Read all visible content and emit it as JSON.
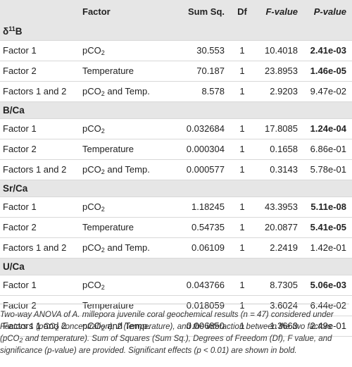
{
  "table": {
    "headers": {
      "factor": "Factor",
      "sum_sq": "Sum Sq.",
      "df": "Df",
      "f_value": "F-value",
      "p_value": "P-value"
    },
    "sections": [
      {
        "title_prefix": "δ",
        "title_sup": "11",
        "title_main": "B",
        "rows": [
          {
            "label": "Factor 1",
            "factor_main": "pCO",
            "factor_sub": "2",
            "factor_tail": "",
            "sum_sq": "30.553",
            "df": "1",
            "f_value": "10.4018",
            "p_value": "2.41e-03",
            "significant": true
          },
          {
            "label": "Factor 2",
            "factor_main": "Temperature",
            "factor_sub": "",
            "factor_tail": "",
            "sum_sq": "70.187",
            "df": "1",
            "f_value": "23.8953",
            "p_value": "1.46e-05",
            "significant": true
          },
          {
            "label": "Factors 1 and 2",
            "factor_main": "pCO",
            "factor_sub": "2",
            "factor_tail": " and Temp.",
            "sum_sq": "8.578",
            "df": "1",
            "f_value": "2.9203",
            "p_value": "9.47e-02",
            "significant": false
          }
        ]
      },
      {
        "title_prefix": "",
        "title_sup": "",
        "title_main": "B/Ca",
        "rows": [
          {
            "label": "Factor 1",
            "factor_main": "pCO",
            "factor_sub": "2",
            "factor_tail": "",
            "sum_sq": "0.032684",
            "df": "1",
            "f_value": "17.8085",
            "p_value": "1.24e-04",
            "significant": true
          },
          {
            "label": "Factor 2",
            "factor_main": "Temperature",
            "factor_sub": "",
            "factor_tail": "",
            "sum_sq": "0.000304",
            "df": "1",
            "f_value": "0.1658",
            "p_value": "6.86e-01",
            "significant": false
          },
          {
            "label": "Factors 1 and 2",
            "factor_main": "pCO",
            "factor_sub": "2",
            "factor_tail": " and Temp.",
            "sum_sq": "0.000577",
            "df": "1",
            "f_value": "0.3143",
            "p_value": "5.78e-01",
            "significant": false
          }
        ]
      },
      {
        "title_prefix": "",
        "title_sup": "",
        "title_main": "Sr/Ca",
        "rows": [
          {
            "label": "Factor 1",
            "factor_main": "pCO",
            "factor_sub": "2",
            "factor_tail": "",
            "sum_sq": "1.18245",
            "df": "1",
            "f_value": "43.3953",
            "p_value": "5.11e-08",
            "significant": true
          },
          {
            "label": "Factor 2",
            "factor_main": "Temperature",
            "factor_sub": "",
            "factor_tail": "",
            "sum_sq": "0.54735",
            "df": "1",
            "f_value": "20.0877",
            "p_value": "5.41e-05",
            "significant": true
          },
          {
            "label": "Factors 1 and 2",
            "factor_main": "pCO",
            "factor_sub": "2",
            "factor_tail": " and Temp.",
            "sum_sq": "0.06109",
            "df": "1",
            "f_value": "2.2419",
            "p_value": "1.42e-01",
            "significant": false
          }
        ]
      },
      {
        "title_prefix": "",
        "title_sup": "",
        "title_main": "U/Ca",
        "rows": [
          {
            "label": "Factor 1",
            "factor_main": "pCO",
            "factor_sub": "2",
            "factor_tail": "",
            "sum_sq": "0.043766",
            "df": "1",
            "f_value": "8.7305",
            "p_value": "5.06e-03",
            "significant": true
          },
          {
            "label": "Factor 2",
            "factor_main": "Temperature",
            "factor_sub": "",
            "factor_tail": "",
            "sum_sq": "0.018059",
            "df": "1",
            "f_value": "3.6024",
            "p_value": "6.44e-02",
            "significant": false
          },
          {
            "label": "Factors 1 and 2",
            "factor_main": "pCO",
            "factor_sub": "2",
            "factor_tail": " and Temp.",
            "sum_sq": "0.006850",
            "df": "1",
            "f_value": "1.3663",
            "p_value": "2.49e-01",
            "significant": false
          }
        ]
      }
    ]
  },
  "caption": {
    "part1": "Two-way ANOVA of A. millepora juvenile coral geochemical results (n = 47) considered under Factors 1 (pCO",
    "sub": "2",
    "part2": " concentration), 2 (temperature), and the interaction between the two factors (pCO",
    "sub2": "2",
    "part3": " and temperature). Sum of Squares (Sum Sq.), Degrees of Freedom (Df), F value, and significance (p-value) are provided. Significant effects (p < 0.01) are shown in bold."
  }
}
